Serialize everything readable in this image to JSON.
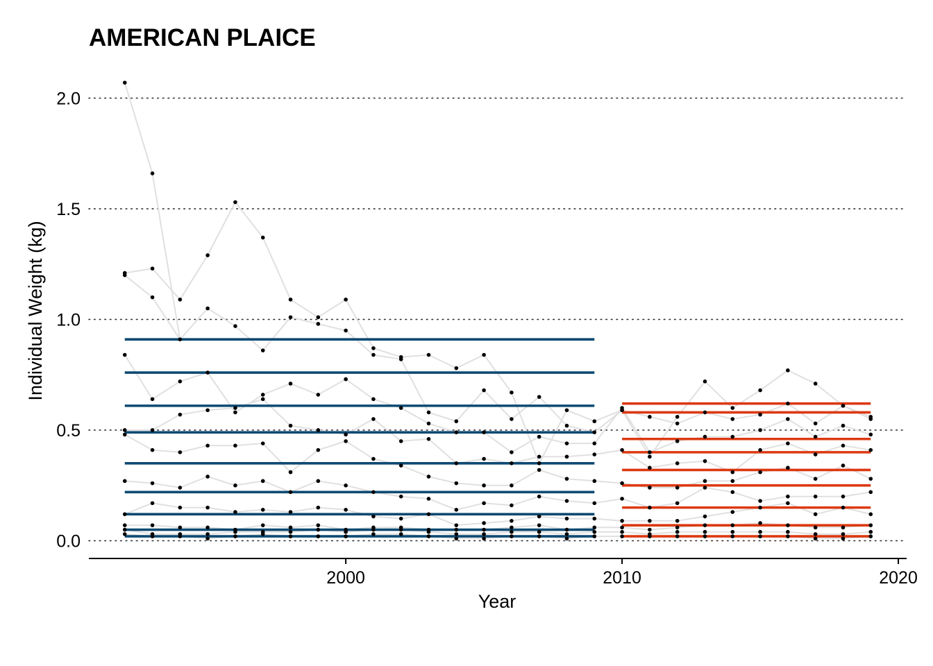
{
  "chart_data": {
    "type": "line",
    "title": "AMERICAN PLAICE",
    "xlabel": "Year",
    "ylabel": "Individual Weight (kg)",
    "xlim": [
      1990.7,
      2020.3
    ],
    "ylim": [
      -0.08,
      2.13
    ],
    "x_ticks": [
      2000,
      2010,
      2020
    ],
    "y_ticks": [
      0.0,
      0.5,
      1.0,
      1.5,
      2.0
    ],
    "y_tick_labels": [
      "0.0",
      "0.5",
      "1.0",
      "1.5",
      "2.0"
    ],
    "grid": "horizontal-dotted",
    "colors": {
      "period1": "#0e4a72",
      "period2": "#dc3912",
      "trend": "#e0e0e0",
      "points": "#000000",
      "grid": "#333333"
    },
    "years": [
      1992,
      1993,
      1994,
      1995,
      1996,
      1997,
      1998,
      1999,
      2000,
      2001,
      2002,
      2003,
      2004,
      2005,
      2006,
      2007,
      2008,
      2009,
      2010,
      2011,
      2012,
      2013,
      2014,
      2015,
      2016,
      2017,
      2018,
      2019
    ],
    "series": [
      {
        "values": [
          0.03,
          0.02,
          0.02,
          0.01,
          0.02,
          0.03,
          0.02,
          0.02,
          0.02,
          0.03,
          0.03,
          0.02,
          0.01,
          0.01,
          0.02,
          0.02,
          0.01,
          0.02,
          0.02,
          0.02,
          0.02,
          0.02,
          0.02,
          0.02,
          0.02,
          0.01,
          0.01,
          0.02
        ]
      },
      {
        "values": [
          0.05,
          0.03,
          0.03,
          0.03,
          0.04,
          0.04,
          0.04,
          0.05,
          0.04,
          0.05,
          0.05,
          0.04,
          0.03,
          0.03,
          0.04,
          0.04,
          0.03,
          0.04,
          0.04,
          0.03,
          0.04,
          0.04,
          0.04,
          0.04,
          0.04,
          0.03,
          0.03,
          0.04
        ]
      },
      {
        "values": [
          0.07,
          0.07,
          0.06,
          0.06,
          0.05,
          0.07,
          0.06,
          0.07,
          0.05,
          0.06,
          0.06,
          0.05,
          0.05,
          0.05,
          0.06,
          0.07,
          0.05,
          0.06,
          0.06,
          0.05,
          0.06,
          0.07,
          0.07,
          0.08,
          0.07,
          0.06,
          0.06,
          0.07
        ]
      },
      {
        "values": [
          0.12,
          0.17,
          0.15,
          0.15,
          0.13,
          0.14,
          0.13,
          0.15,
          0.14,
          0.11,
          0.1,
          0.12,
          0.07,
          0.08,
          0.09,
          0.11,
          0.1,
          0.1,
          0.09,
          0.09,
          0.09,
          0.11,
          0.13,
          0.15,
          0.17,
          0.12,
          0.15,
          0.12
        ]
      },
      {
        "values": [
          0.27,
          0.26,
          0.24,
          0.29,
          0.25,
          0.27,
          0.22,
          0.27,
          0.25,
          0.22,
          0.2,
          0.19,
          0.14,
          0.17,
          0.16,
          0.2,
          0.18,
          0.17,
          0.19,
          0.15,
          0.17,
          0.24,
          0.22,
          0.18,
          0.2,
          0.2,
          0.2,
          0.22
        ]
      },
      {
        "values": [
          0.48,
          0.41,
          0.4,
          0.43,
          0.43,
          0.44,
          0.31,
          0.41,
          0.45,
          0.37,
          0.34,
          0.29,
          0.26,
          0.25,
          0.25,
          0.32,
          0.28,
          0.27,
          0.26,
          0.24,
          0.24,
          0.27,
          0.27,
          0.31,
          0.33,
          0.28,
          0.34,
          0.28
        ]
      },
      {
        "values": [
          0.5,
          0.5,
          0.57,
          0.59,
          0.6,
          0.64,
          0.52,
          0.5,
          0.48,
          0.55,
          0.45,
          0.46,
          0.35,
          0.37,
          0.35,
          0.38,
          0.38,
          0.39,
          0.41,
          0.33,
          0.35,
          0.36,
          0.31,
          0.41,
          0.44,
          0.39,
          0.43,
          0.41
        ]
      },
      {
        "values": [
          0.84,
          0.64,
          0.72,
          0.76,
          0.58,
          0.66,
          0.71,
          0.66,
          0.73,
          0.64,
          0.6,
          0.53,
          0.49,
          0.49,
          0.4,
          0.47,
          0.44,
          0.44,
          0.6,
          0.4,
          0.45,
          0.47,
          0.47,
          0.5,
          0.55,
          0.47,
          0.52,
          0.48
        ]
      },
      {
        "values": [
          1.2,
          1.1,
          0.91,
          1.05,
          0.97,
          0.86,
          1.01,
          0.98,
          0.95,
          0.84,
          0.82,
          0.58,
          0.54,
          0.68,
          0.55,
          0.65,
          0.52,
          0.49,
          0.59,
          0.56,
          0.53,
          0.58,
          0.55,
          0.57,
          0.62,
          0.53,
          0.61,
          0.55
        ]
      },
      {
        "values": [
          1.21,
          1.23,
          1.09,
          1.29,
          1.53,
          1.37,
          1.09,
          1.01,
          1.09,
          0.87,
          0.83,
          0.84,
          0.78,
          0.84,
          0.67,
          0.35,
          0.59,
          0.54,
          0.59,
          0.38,
          0.56,
          0.72,
          0.6,
          0.68,
          0.77,
          0.71,
          0.61,
          0.56
        ]
      }
    ],
    "extra_points": [
      {
        "x": 1992,
        "y": 2.07
      },
      {
        "x": 1993,
        "y": 1.66
      }
    ],
    "period_means": [
      {
        "period": "1992-2009",
        "x_range": [
          1992,
          2009
        ],
        "values": [
          0.02,
          0.05,
          0.12,
          0.22,
          0.35,
          0.49,
          0.61,
          0.76,
          0.91
        ]
      },
      {
        "period": "2010-2019",
        "x_range": [
          2010,
          2019
        ],
        "values": [
          0.02,
          0.07,
          0.15,
          0.25,
          0.32,
          0.4,
          0.46,
          0.58,
          0.62
        ]
      }
    ]
  }
}
